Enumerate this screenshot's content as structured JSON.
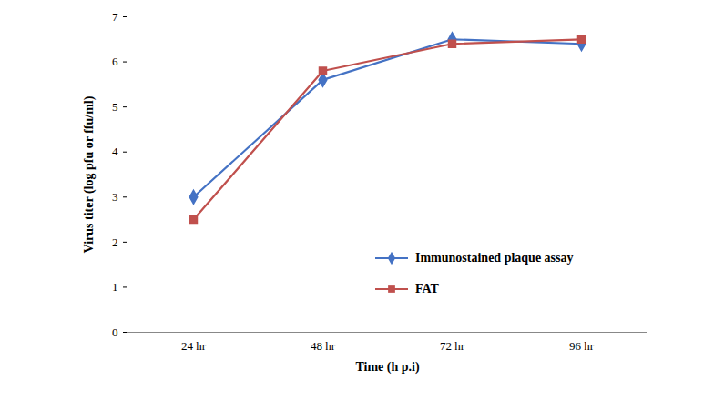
{
  "chart_data": {
    "type": "line",
    "x_label": "Time (h p.i)",
    "y_label": "Virus titer (log pfu or ffu/ml)",
    "categories": [
      "24 hr",
      "48 hr",
      "72 hr",
      "96 hr"
    ],
    "series": [
      {
        "name": "Immunostained plaque assay",
        "color": "#4472c4",
        "marker": "diamond",
        "values": [
          3.0,
          5.6,
          6.5,
          6.4
        ]
      },
      {
        "name": "FAT",
        "color": "#c0504d",
        "marker": "square",
        "values": [
          2.5,
          5.8,
          6.4,
          6.5
        ]
      }
    ],
    "ylim": [
      0,
      7
    ],
    "yticks": [
      0,
      1,
      2,
      3,
      4,
      5,
      6,
      7
    ],
    "grid": false,
    "legend": "lower right"
  }
}
